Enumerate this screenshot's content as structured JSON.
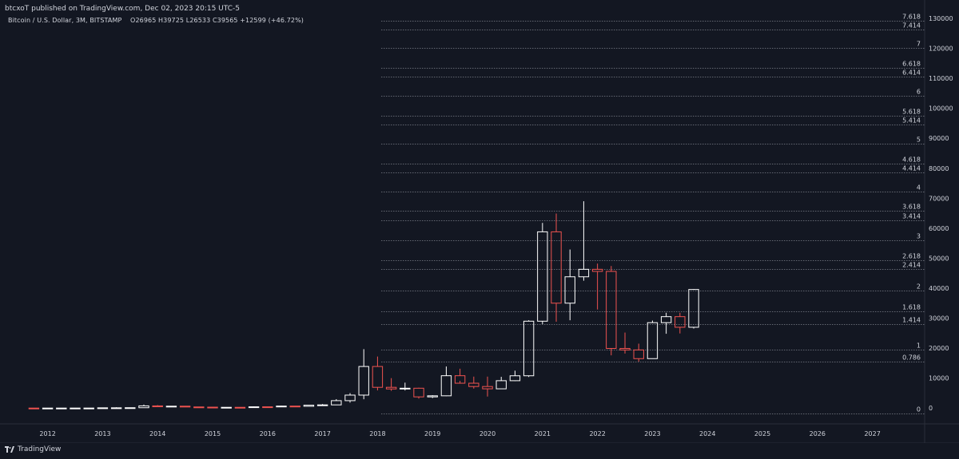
{
  "header": {
    "publisher_text": "btcxoT published on TradingView.com, Dec 02, 2023 20:15 UTC-5"
  },
  "legend": {
    "symbol": "Bitcoin / U.S. Dollar, 3M, BITSTAMP",
    "open_label": "O",
    "open": "26965",
    "high_label": "H",
    "high": "39725",
    "low_label": "L",
    "low": "26533",
    "close_label": "C",
    "close": "39565",
    "change": "+12599 (+46.72%)"
  },
  "footer": {
    "brand": "TradingView"
  },
  "colors": {
    "background": "#131722",
    "bull_outline": "#ffffff",
    "bear_outline": "#ef5350",
    "fib_line": "#b2b5be",
    "text": "#d1d4dc"
  },
  "chart_data": {
    "type": "candlestick",
    "timeframe": "3M",
    "y_axis": {
      "ticks": [
        0,
        10000,
        20000,
        30000,
        40000,
        50000,
        60000,
        70000,
        80000,
        90000,
        100000,
        110000,
        120000,
        130000
      ],
      "range": [
        -5000,
        134000
      ]
    },
    "x_axis": {
      "ticks": [
        "2012",
        "2013",
        "2014",
        "2015",
        "2016",
        "2017",
        "2018",
        "2019",
        "2020",
        "2021",
        "2022",
        "2023",
        "2024",
        "2025",
        "2026",
        "2027"
      ],
      "range": [
        2011.25,
        2027.95
      ]
    },
    "fib_levels": [
      {
        "label": "0",
        "value": -1900
      },
      {
        "label": "0.786",
        "value": 15400
      },
      {
        "label": "1",
        "value": 19600
      },
      {
        "label": "1.414",
        "value": 28000
      },
      {
        "label": "1.618",
        "value": 32300
      },
      {
        "label": "2",
        "value": 39300
      },
      {
        "label": "2.414",
        "value": 46500
      },
      {
        "label": "2.618",
        "value": 49400
      },
      {
        "label": "3",
        "value": 56000
      },
      {
        "label": "3.414",
        "value": 62600
      },
      {
        "label": "3.618",
        "value": 65700
      },
      {
        "label": "4",
        "value": 72100
      },
      {
        "label": "4.414",
        "value": 78500
      },
      {
        "label": "4.618",
        "value": 81600
      },
      {
        "label": "5",
        "value": 88200
      },
      {
        "label": "5.414",
        "value": 94600
      },
      {
        "label": "5.618",
        "value": 97500
      },
      {
        "label": "6",
        "value": 104200
      },
      {
        "label": "6.414",
        "value": 110500
      },
      {
        "label": "6.618",
        "value": 113500
      },
      {
        "label": "7",
        "value": 120100
      },
      {
        "label": "7.414",
        "value": 126300
      },
      {
        "label": "7.618",
        "value": 129200
      }
    ],
    "candles": [
      {
        "t": 2011.75,
        "o": 5,
        "h": 8,
        "l": 2,
        "c": 4
      },
      {
        "t": 2012.0,
        "o": 4,
        "h": 6,
        "l": 4,
        "c": 5
      },
      {
        "t": 2012.25,
        "o": 5,
        "h": 6,
        "l": 5,
        "c": 7
      },
      {
        "t": 2012.5,
        "o": 7,
        "h": 15,
        "l": 7,
        "c": 12
      },
      {
        "t": 2012.75,
        "o": 12,
        "h": 14,
        "l": 10,
        "c": 13
      },
      {
        "t": 2013.0,
        "o": 13,
        "h": 95,
        "l": 13,
        "c": 93
      },
      {
        "t": 2013.25,
        "o": 93,
        "h": 266,
        "l": 50,
        "c": 97
      },
      {
        "t": 2013.5,
        "o": 97,
        "h": 145,
        "l": 65,
        "c": 128
      },
      {
        "t": 2013.75,
        "o": 128,
        "h": 1160,
        "l": 110,
        "c": 740
      },
      {
        "t": 2014.0,
        "o": 740,
        "h": 1000,
        "l": 420,
        "c": 450
      },
      {
        "t": 2014.25,
        "o": 450,
        "h": 680,
        "l": 345,
        "c": 640
      },
      {
        "t": 2014.5,
        "o": 640,
        "h": 660,
        "l": 350,
        "c": 385
      },
      {
        "t": 2014.75,
        "o": 385,
        "h": 440,
        "l": 305,
        "c": 320
      },
      {
        "t": 2015.0,
        "o": 320,
        "h": 330,
        "l": 165,
        "c": 245
      },
      {
        "t": 2015.25,
        "o": 245,
        "h": 265,
        "l": 215,
        "c": 263
      },
      {
        "t": 2015.5,
        "o": 263,
        "h": 315,
        "l": 200,
        "c": 236
      },
      {
        "t": 2015.75,
        "o": 236,
        "h": 500,
        "l": 235,
        "c": 430
      },
      {
        "t": 2016.0,
        "o": 430,
        "h": 440,
        "l": 350,
        "c": 416
      },
      {
        "t": 2016.25,
        "o": 416,
        "h": 780,
        "l": 415,
        "c": 670
      },
      {
        "t": 2016.5,
        "o": 670,
        "h": 700,
        "l": 480,
        "c": 610
      },
      {
        "t": 2016.75,
        "o": 610,
        "h": 980,
        "l": 605,
        "c": 960
      },
      {
        "t": 2017.0,
        "o": 960,
        "h": 1350,
        "l": 750,
        "c": 1070
      },
      {
        "t": 2017.25,
        "o": 1070,
        "h": 2980,
        "l": 1060,
        "c": 2480
      },
      {
        "t": 2017.5,
        "o": 2480,
        "h": 5000,
        "l": 1830,
        "c": 4330
      },
      {
        "t": 2017.75,
        "o": 4330,
        "h": 19660,
        "l": 2950,
        "c": 13880
      },
      {
        "t": 2018.0,
        "o": 13880,
        "h": 17200,
        "l": 5900,
        "c": 6930
      },
      {
        "t": 2018.25,
        "o": 6930,
        "h": 9990,
        "l": 5750,
        "c": 6390
      },
      {
        "t": 2018.5,
        "o": 6390,
        "h": 8490,
        "l": 5880,
        "c": 6630
      },
      {
        "t": 2018.75,
        "o": 6630,
        "h": 6800,
        "l": 3150,
        "c": 3740
      },
      {
        "t": 2019.0,
        "o": 3740,
        "h": 4300,
        "l": 3350,
        "c": 4100
      },
      {
        "t": 2019.25,
        "o": 4100,
        "h": 13880,
        "l": 4000,
        "c": 10800
      },
      {
        "t": 2019.5,
        "o": 10800,
        "h": 13140,
        "l": 9100,
        "c": 8300
      },
      {
        "t": 2019.75,
        "o": 8300,
        "h": 10500,
        "l": 6500,
        "c": 7200
      },
      {
        "t": 2020.0,
        "o": 7200,
        "h": 10500,
        "l": 3850,
        "c": 6430
      },
      {
        "t": 2020.25,
        "o": 6430,
        "h": 10430,
        "l": 6420,
        "c": 9140
      },
      {
        "t": 2020.5,
        "o": 9140,
        "h": 12480,
        "l": 9000,
        "c": 10780
      },
      {
        "t": 2020.75,
        "o": 10780,
        "h": 29300,
        "l": 10380,
        "c": 28990
      },
      {
        "t": 2021.0,
        "o": 28990,
        "h": 61780,
        "l": 28000,
        "c": 58800
      },
      {
        "t": 2021.25,
        "o": 58800,
        "h": 64900,
        "l": 28800,
        "c": 35000
      },
      {
        "t": 2021.5,
        "o": 35000,
        "h": 52900,
        "l": 29300,
        "c": 43800
      },
      {
        "t": 2021.75,
        "o": 43800,
        "h": 69000,
        "l": 42500,
        "c": 46300
      },
      {
        "t": 2022.0,
        "o": 46300,
        "h": 48200,
        "l": 32900,
        "c": 45600
      },
      {
        "t": 2022.25,
        "o": 45600,
        "h": 47400,
        "l": 17600,
        "c": 19900
      },
      {
        "t": 2022.5,
        "o": 19900,
        "h": 25200,
        "l": 18200,
        "c": 19400
      },
      {
        "t": 2022.75,
        "o": 19400,
        "h": 21500,
        "l": 15500,
        "c": 16500
      },
      {
        "t": 2023.0,
        "o": 16500,
        "h": 29200,
        "l": 16500,
        "c": 28500
      },
      {
        "t": 2023.25,
        "o": 28500,
        "h": 31800,
        "l": 24800,
        "c": 30500
      },
      {
        "t": 2023.5,
        "o": 30500,
        "h": 31800,
        "l": 24900,
        "c": 26965
      },
      {
        "t": 2023.75,
        "o": 26965,
        "h": 39725,
        "l": 26533,
        "c": 39565
      }
    ]
  }
}
